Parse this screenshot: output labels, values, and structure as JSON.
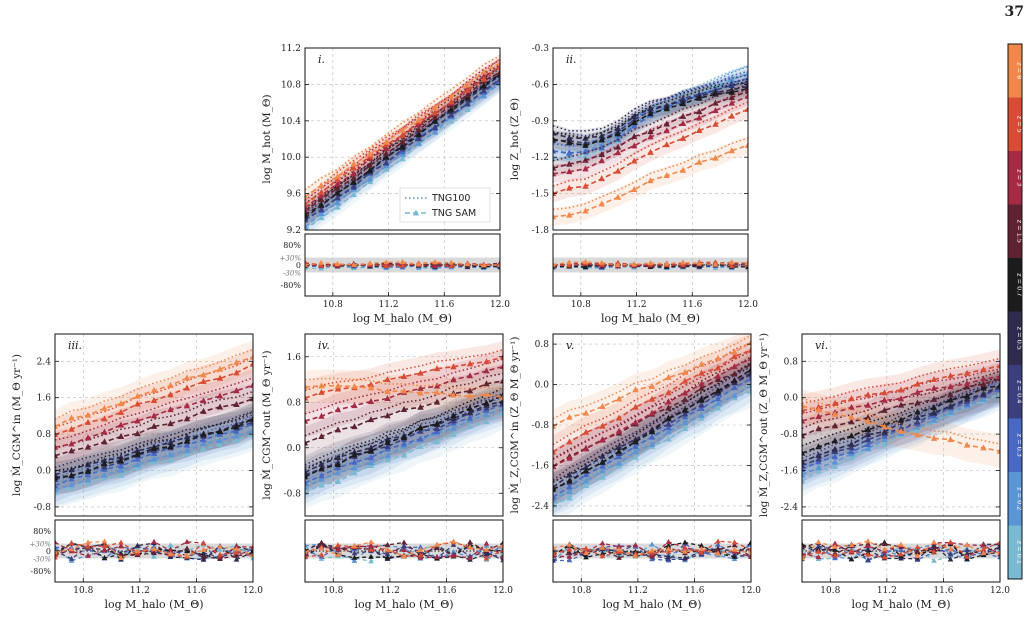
{
  "page_number": "37",
  "chart_data": {
    "type": "line",
    "shared_x": {
      "label": "log M_halo (M_Θ)",
      "ticks": [
        10.8,
        11.2,
        11.6,
        12.0
      ],
      "range": [
        10.6,
        12.0
      ]
    },
    "legend": [
      "TNG100",
      "TNG SAM"
    ],
    "colorbar": {
      "labels": [
        "z = 0.1",
        "z = 0.2",
        "z = 0.3",
        "z = 0.4",
        "z = 0.5",
        "z = 0.7",
        "z = 1.5",
        "z = 3",
        "z = 5",
        "z = 8"
      ]
    },
    "colors": [
      "#79bad2",
      "#5a95d6",
      "#4868c2",
      "#3b3f7f",
      "#2e2b4f",
      "#1c1c1c",
      "#5e2231",
      "#a52a43",
      "#d84b34",
      "#f0884c"
    ],
    "ratio_ticks": [
      "80%",
      "+30%",
      "0",
      "-30%",
      "-80%"
    ],
    "panels": [
      {
        "label": "i.",
        "ylabel": "log M_hot (M_Θ)",
        "yticks": [
          9.2,
          9.6,
          10.0,
          10.4,
          10.8,
          11.2
        ],
        "ylim": [
          9.2,
          11.2
        ],
        "series_start": [
          9.2,
          9.25,
          9.3,
          9.3,
          9.35,
          9.35,
          9.4,
          9.45,
          9.5,
          9.55
        ],
        "series_end": [
          10.8,
          10.82,
          10.85,
          10.85,
          10.9,
          10.9,
          10.95,
          11.0,
          11.0,
          11.05
        ],
        "show_legend": true
      },
      {
        "label": "ii.",
        "ylabel": "log Z_hot (Z_Θ)",
        "yticks": [
          -1.8,
          -1.5,
          -1.2,
          -0.9,
          -0.6,
          -0.3
        ],
        "ylim": [
          -1.8,
          -0.3
        ],
        "series_start": [
          -1.2,
          -1.15,
          -1.15,
          -1.05,
          -1.0,
          -1.05,
          -1.3,
          -1.35,
          -1.5,
          -1.7
        ],
        "series_end": [
          -0.5,
          -0.52,
          -0.55,
          -0.57,
          -0.6,
          -0.62,
          -0.65,
          -0.7,
          -0.8,
          -1.1
        ]
      },
      {
        "label": "iii.",
        "ylabel": "log Ṁ_CGM^in (M_Θ yr⁻¹)",
        "yticks": [
          -0.8,
          0.0,
          0.8,
          1.6,
          2.4
        ],
        "ylim": [
          -1.0,
          3.0
        ],
        "series_start": [
          -0.5,
          -0.4,
          -0.3,
          -0.2,
          -0.1,
          -0.2,
          0.3,
          0.5,
          0.8,
          1.0
        ],
        "series_end": [
          0.8,
          0.9,
          1.0,
          1.05,
          1.1,
          1.1,
          1.6,
          1.9,
          2.3,
          2.5
        ]
      },
      {
        "label": "iv.",
        "ylabel": "log Ṁ_CGM^out (M_Θ yr⁻¹)",
        "yticks": [
          -0.8,
          0.0,
          0.8,
          1.6
        ],
        "ylim": [
          -1.2,
          2.0
        ],
        "series_start": [
          -0.8,
          -0.7,
          -0.6,
          -0.5,
          -0.4,
          -0.5,
          0.1,
          0.5,
          0.9,
          1.1
        ],
        "series_end": [
          0.6,
          0.7,
          0.75,
          0.8,
          0.85,
          0.9,
          1.2,
          1.4,
          1.6,
          0.9
        ]
      },
      {
        "label": "v.",
        "ylabel": "log Ṁ_Z,CGM^in (Z_Θ M_Θ yr⁻¹)",
        "yticks": [
          -2.4,
          -1.6,
          -0.8,
          0.0,
          0.8
        ],
        "ylim": [
          -2.6,
          1.0
        ],
        "series_start": [
          -2.4,
          -2.3,
          -2.2,
          -2.1,
          -2.0,
          -2.1,
          -1.6,
          -1.6,
          -1.3,
          -0.8
        ],
        "series_end": [
          -0.1,
          0.0,
          0.1,
          0.2,
          0.25,
          0.3,
          0.4,
          0.5,
          0.7,
          0.8
        ]
      },
      {
        "label": "vi.",
        "ylabel": "log Ṁ_Z,CGM^out (Z_Θ M_Θ yr⁻¹)",
        "yticks": [
          -2.4,
          -1.6,
          -0.8,
          0.0,
          0.8
        ],
        "ylim": [
          -2.6,
          1.4
        ],
        "series_start": [
          -1.8,
          -1.7,
          -1.6,
          -1.5,
          -1.4,
          -1.2,
          -0.8,
          -0.5,
          -0.3,
          -0.2
        ],
        "series_end": [
          0.1,
          0.15,
          0.2,
          0.2,
          0.25,
          0.3,
          0.4,
          0.5,
          0.7,
          -1.2
        ]
      }
    ]
  }
}
